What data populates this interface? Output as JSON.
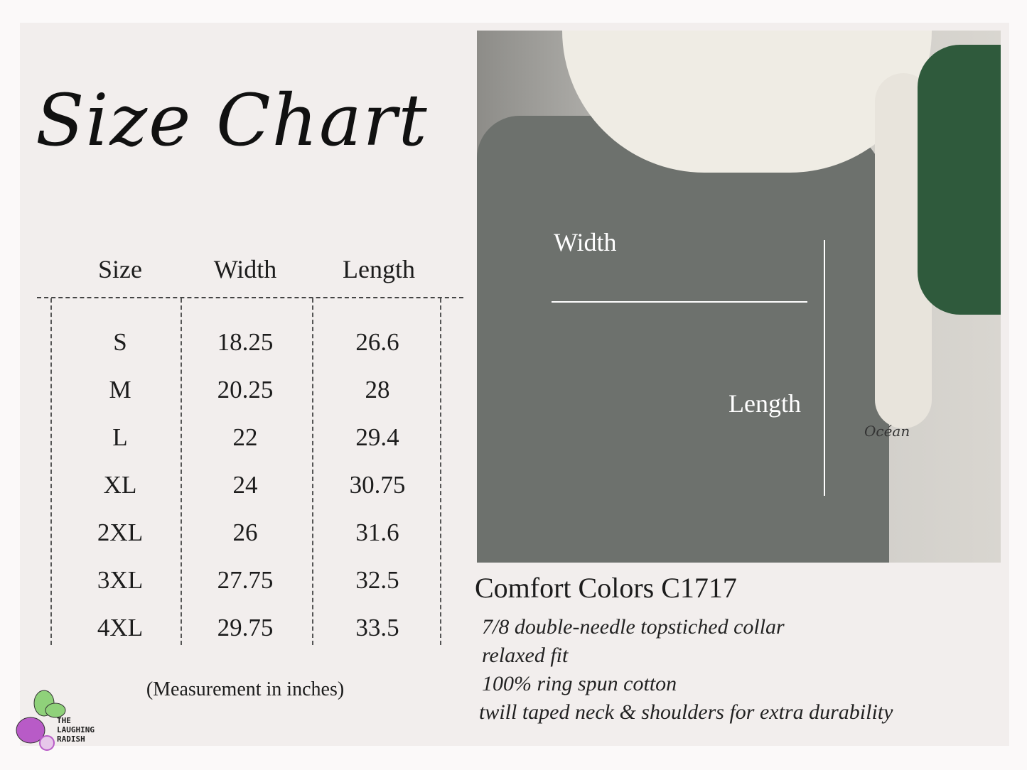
{
  "title": "Size Chart",
  "table": {
    "headers": [
      "Size",
      "Width",
      "Length"
    ],
    "rows": [
      [
        "S",
        "18.25",
        "26.6"
      ],
      [
        "M",
        "20.25",
        "28"
      ],
      [
        "L",
        "22",
        "29.4"
      ],
      [
        "XL",
        "24",
        "30.75"
      ],
      [
        "2XL",
        "26",
        "31.6"
      ],
      [
        "3XL",
        "27.75",
        "32.5"
      ],
      [
        "4XL",
        "29.75",
        "33.5"
      ]
    ],
    "note": "(Measurement in inches)"
  },
  "photo": {
    "width_label": "Width",
    "length_label": "Length",
    "tattoo_text": "Océan"
  },
  "product": {
    "name": "Comfort Colors C1717",
    "features": [
      "7/8 double-needle topstiched collar",
      "relaxed fit",
      "100% ring spun cotton",
      "twill taped neck & shoulders for extra durability"
    ]
  },
  "logo": {
    "lines": [
      "THE",
      "LAUGHING",
      "RADISH"
    ]
  },
  "colors": {
    "background": "#f2eeed",
    "shirt": "#6d716d",
    "radish": "#b85bc7",
    "leaf": "#8fd17a"
  }
}
